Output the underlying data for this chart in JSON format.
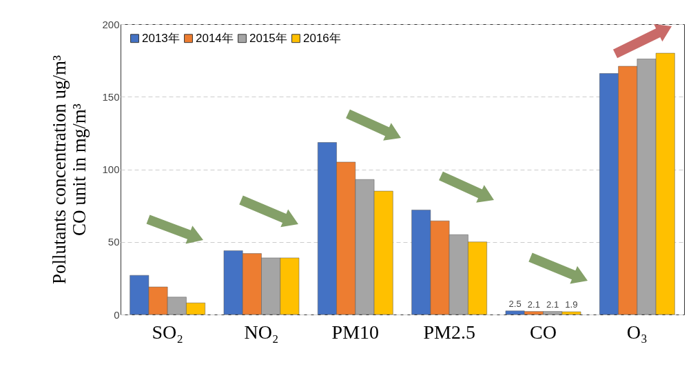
{
  "chart_data": {
    "type": "bar",
    "ylabel": "Pollutants concentration ug/m³\nCO unit in mg/m³",
    "categories": [
      "SO₂",
      "NO₂",
      "PM10",
      "PM2.5",
      "CO",
      "O₃"
    ],
    "series": [
      {
        "name": "2013年",
        "color": "#4472c4",
        "values": [
          27,
          44,
          118.5,
          72,
          2.5,
          166
        ],
        "value_labels": [
          null,
          null,
          null,
          null,
          "2.5",
          null
        ]
      },
      {
        "name": "2014年",
        "color": "#ed7d31",
        "values": [
          19,
          42,
          105,
          64.5,
          2.1,
          171
        ],
        "value_labels": [
          null,
          null,
          null,
          null,
          "2.1",
          null
        ]
      },
      {
        "name": "2015年",
        "color": "#a5a5a5",
        "values": [
          12,
          39,
          93,
          55,
          2.1,
          176
        ],
        "value_labels": [
          null,
          null,
          null,
          null,
          "2.1",
          null
        ]
      },
      {
        "name": "2016年",
        "color": "#ffc000",
        "values": [
          8,
          39,
          85,
          50,
          1.9,
          180
        ],
        "value_labels": [
          null,
          null,
          null,
          null,
          "1.9",
          null
        ]
      }
    ],
    "ylim": [
      0,
      200
    ],
    "yticks": [
      0,
      50,
      100,
      150,
      200
    ],
    "grid": "y",
    "legend": "top left"
  }
}
